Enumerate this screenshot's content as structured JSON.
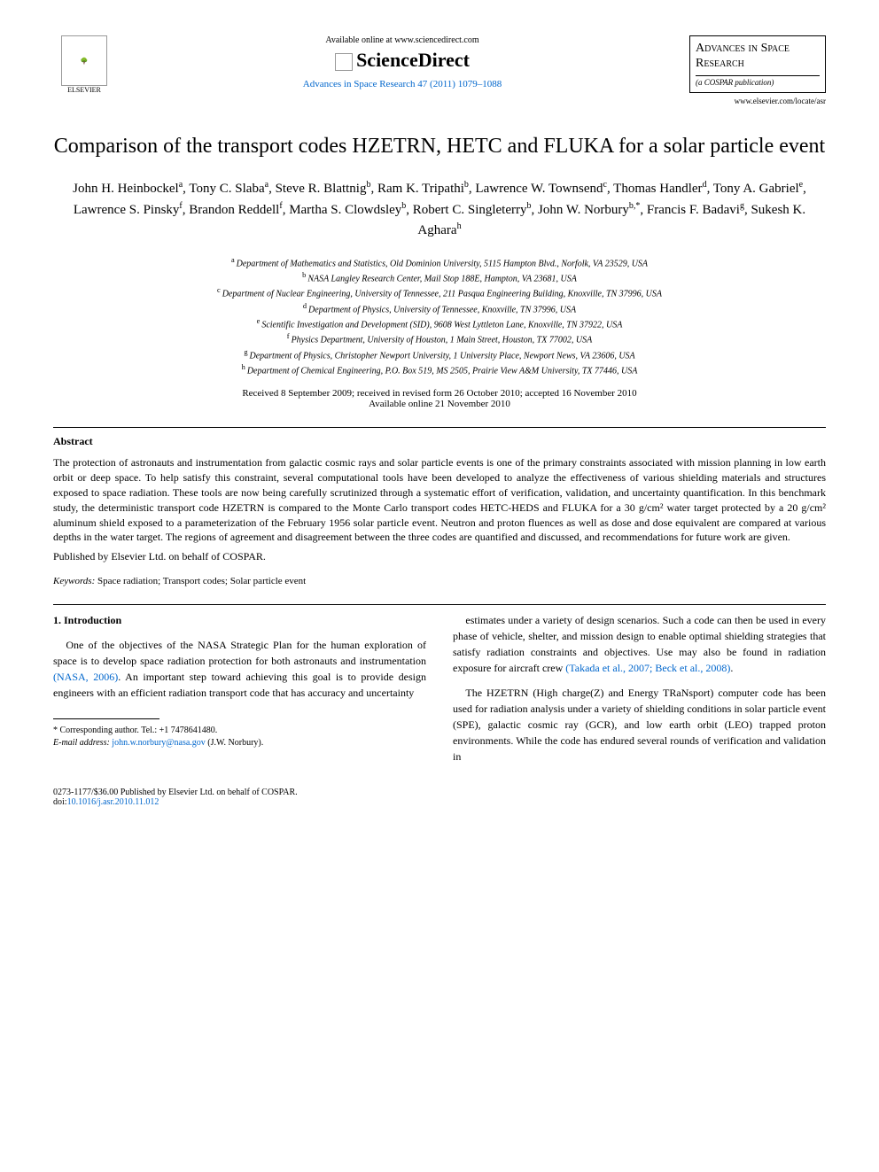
{
  "header": {
    "elsevier": "ELSEVIER",
    "available": "Available online at www.sciencedirect.com",
    "sciencedirect": "ScienceDirect",
    "journal_ref": "Advances in Space Research 47 (2011) 1079–1088",
    "journal_box_title": "Advances in Space Research",
    "cospar": "(a COSPAR publication)",
    "locate": "www.elsevier.com/locate/asr"
  },
  "title": "Comparison of the transport codes HZETRN, HETC and FLUKA for a solar particle event",
  "authors_html": "John H. Heinbockel<sup>a</sup>, Tony C. Slaba<sup>a</sup>, Steve R. Blattnig<sup>b</sup>, Ram K. Tripathi<sup>b</sup>, Lawrence W. Townsend<sup>c</sup>, Thomas Handler<sup>d</sup>, Tony A. Gabriel<sup>e</sup>, Lawrence S. Pinsky<sup>f</sup>, Brandon Reddell<sup>f</sup>, Martha S. Clowdsley<sup>b</sup>, Robert C. Singleterry<sup>b</sup>, John W. Norbury<sup>b,*</sup>, Francis F. Badavi<sup>g</sup>, Sukesh K. Aghara<sup>h</sup>",
  "affiliations": [
    {
      "sup": "a",
      "text": "Department of Mathematics and Statistics, Old Dominion University, 5115 Hampton Blvd., Norfolk, VA 23529, USA"
    },
    {
      "sup": "b",
      "text": "NASA Langley Research Center, Mail Stop 188E, Hampton, VA 23681, USA"
    },
    {
      "sup": "c",
      "text": "Department of Nuclear Engineering, University of Tennessee, 211 Pasqua Engineering Building, Knoxville, TN 37996, USA"
    },
    {
      "sup": "d",
      "text": "Department of Physics, University of Tennessee, Knoxville, TN 37996, USA"
    },
    {
      "sup": "e",
      "text": "Scientific Investigation and Development (SID), 9608 West Lyttleton Lane, Knoxville, TN 37922, USA"
    },
    {
      "sup": "f",
      "text": "Physics Department, University of Houston, 1 Main Street, Houston, TX 77002, USA"
    },
    {
      "sup": "g",
      "text": "Department of Physics, Christopher Newport University, 1 University Place, Newport News, VA 23606, USA"
    },
    {
      "sup": "h",
      "text": "Department of Chemical Engineering, P.O. Box 519, MS 2505, Prairie View A&M University, TX 77446, USA"
    }
  ],
  "dates": {
    "line1": "Received 8 September 2009; received in revised form 26 October 2010; accepted 16 November 2010",
    "line2": "Available online 21 November 2010"
  },
  "abstract": {
    "heading": "Abstract",
    "text": "The protection of astronauts and instrumentation from galactic cosmic rays and solar particle events is one of the primary constraints associated with mission planning in low earth orbit or deep space. To help satisfy this constraint, several computational tools have been developed to analyze the effectiveness of various shielding materials and structures exposed to space radiation. These tools are now being carefully scrutinized through a systematic effort of verification, validation, and uncertainty quantification. In this benchmark study, the deterministic transport code HZETRN is compared to the Monte Carlo transport codes HETC-HEDS and FLUKA for a 30 g/cm² water target protected by a 20 g/cm² aluminum shield exposed to a parameterization of the February 1956 solar particle event. Neutron and proton fluences as well as dose and dose equivalent are compared at various depths in the water target. The regions of agreement and disagreement between the three codes are quantified and discussed, and recommendations for future work are given.",
    "published": "Published by Elsevier Ltd. on behalf of COSPAR."
  },
  "keywords": {
    "label": "Keywords:",
    "text": " Space radiation; Transport codes; Solar particle event"
  },
  "intro": {
    "heading": "1. Introduction",
    "left_p1": "One of the objectives of the NASA Strategic Plan for the human exploration of space is to develop space radiation protection for both astronauts and instrumentation ",
    "left_cite1": "(NASA, 2006)",
    "left_p1_cont": ". An important step toward achieving this goal is to provide design engineers with an efficient radiation transport code that has accuracy and uncertainty",
    "right_p1": "estimates under a variety of design scenarios. Such a code can then be used in every phase of vehicle, shelter, and mission design to enable optimal shielding strategies that satisfy radiation constraints and objectives. Use may also be found in radiation exposure for aircraft crew ",
    "right_cite1": "(Takada et al., 2007; Beck et al., 2008)",
    "right_p1_end": ".",
    "right_p2": "The HZETRN (High charge(Z) and Energy TRaNsport) computer code has been used for radiation analysis under a variety of shielding conditions in solar particle event (SPE), galactic cosmic ray (GCR), and low earth orbit (LEO) trapped proton environments. While the code has endured several rounds of verification and validation in"
  },
  "footnote": {
    "corr": "* Corresponding author. Tel.: +1 7478641480.",
    "email_label": "E-mail address: ",
    "email": "john.w.norbury@nasa.gov",
    "email_suffix": " (J.W. Norbury)."
  },
  "bottom": {
    "copyright": "0273-1177/$36.00 Published by Elsevier Ltd. on behalf of COSPAR.",
    "doi_label": "doi:",
    "doi": "10.1016/j.asr.2010.11.012"
  }
}
